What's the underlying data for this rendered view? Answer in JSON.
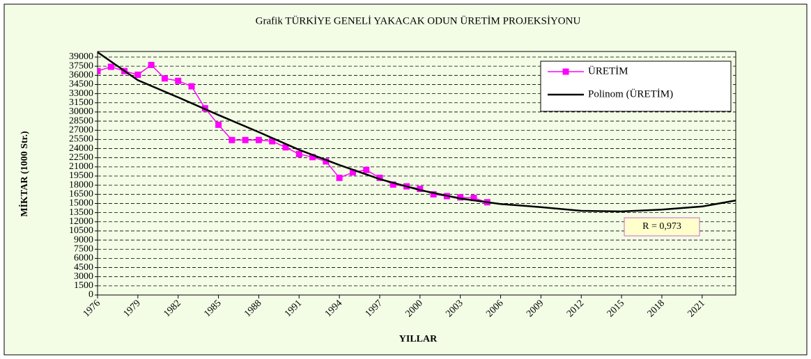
{
  "chart_data": {
    "type": "line",
    "title": "Grafik  TÜRKİYE GENELİ YAKACAK ODUN ÜRETİM PROJEKSİYONU",
    "xlabel": "YILLAR",
    "ylabel": "MİKTAR (1000 Str.)",
    "xlim": [
      1976,
      2023.5
    ],
    "xticks": [
      1976,
      1979,
      1982,
      1985,
      1988,
      1991,
      1994,
      1997,
      2000,
      2003,
      2006,
      2009,
      2012,
      2015,
      2018,
      2021
    ],
    "ylim": [
      0,
      39000
    ],
    "yticks": [
      0,
      1500,
      3000,
      4500,
      6000,
      7500,
      9000,
      10500,
      12000,
      13500,
      15000,
      16500,
      18000,
      19500,
      21000,
      22500,
      24000,
      25500,
      27000,
      28500,
      30000,
      31500,
      33000,
      34500,
      36000,
      37500,
      39000
    ],
    "grid": true,
    "legend": "upper right",
    "series": [
      {
        "name": "ÜRETİM",
        "color": "#ff00ff",
        "x": [
          1976,
          1977,
          1978,
          1979,
          1980,
          1981,
          1982,
          1983,
          1984,
          1985,
          1986,
          1987,
          1988,
          1989,
          1990,
          1991,
          1992,
          1993,
          1994,
          1995,
          1996,
          1997,
          1998,
          1999,
          2000,
          2001,
          2002,
          2003,
          2004,
          2005
        ],
        "values": [
          36700,
          37400,
          36700,
          36100,
          37700,
          35500,
          35100,
          34200,
          30600,
          27900,
          25400,
          25400,
          25400,
          25200,
          24200,
          23100,
          22600,
          21900,
          19200,
          20100,
          20500,
          19200,
          18100,
          17800,
          17400,
          16500,
          16200,
          16000,
          15900,
          15200
        ]
      },
      {
        "name": "Polinom (ÜRETİM)",
        "color": "#000000",
        "x": [
          1976,
          1979,
          1982,
          1985,
          1988,
          1991,
          1994,
          1997,
          2000,
          2003,
          2006,
          2009,
          2012,
          2015,
          2018,
          2021,
          2023.5
        ],
        "values": [
          39800,
          35200,
          32400,
          29500,
          26700,
          23800,
          21300,
          19000,
          17200,
          15800,
          14900,
          14400,
          13800,
          13700,
          14000,
          14500,
          15500
        ]
      }
    ],
    "annotations": [
      {
        "text": "R = 0,973"
      }
    ]
  }
}
